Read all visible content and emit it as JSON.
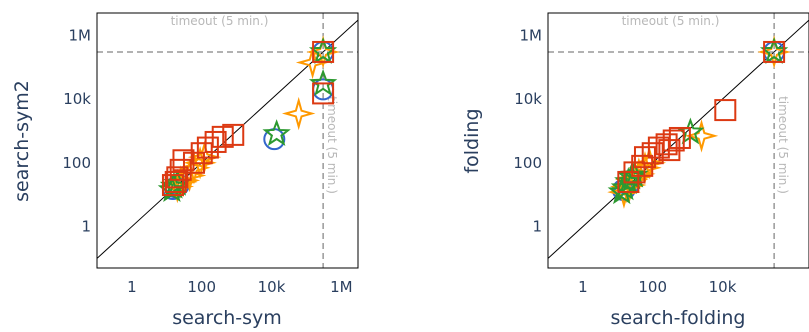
{
  "chart_data": [
    {
      "type": "scatter",
      "xlabel": "search-sym",
      "ylabel": "search-sym2",
      "scale": "log",
      "xlim": [
        0.1,
        3000000
      ],
      "ylim": [
        0.05,
        5000000
      ],
      "xticks": [
        {
          "v": 1,
          "label": "1"
        },
        {
          "v": 100,
          "label": "100"
        },
        {
          "v": 10000,
          "label": "10k"
        },
        {
          "v": 1000000,
          "label": "1M"
        }
      ],
      "yticks": [
        {
          "v": 1,
          "label": "1"
        },
        {
          "v": 100,
          "label": "100"
        },
        {
          "v": 10000,
          "label": "10k"
        },
        {
          "v": 1000000,
          "label": "1M"
        }
      ],
      "timeout": 300000,
      "timeout_label": "timeout (5 min.)",
      "series": [
        {
          "marker": "circle",
          "color": "#3366cc",
          "points": [
            [
              18,
              17
            ],
            [
              22,
              20
            ],
            [
              15,
              15
            ],
            [
              300000,
              300000
            ],
            [
              12000,
              550
            ],
            [
              300000,
              20000
            ]
          ]
        },
        {
          "marker": "star4",
          "color": "#ff9900",
          "points": [
            [
              20,
              18
            ],
            [
              25,
              25
            ],
            [
              30,
              28
            ],
            [
              45,
              40
            ],
            [
              60,
              70
            ],
            [
              90,
              100
            ],
            [
              120,
              150
            ],
            [
              300000,
              300000
            ],
            [
              150000,
              140000
            ],
            [
              60000,
              3500
            ]
          ]
        },
        {
          "marker": "star5",
          "color": "#2c9930",
          "points": [
            [
              16,
              18
            ],
            [
              20,
              22
            ],
            [
              14,
              14
            ],
            [
              300000,
              300000
            ],
            [
              300000,
              30000
            ],
            [
              14000,
              800
            ]
          ]
        },
        {
          "marker": "square",
          "color": "#dc3912",
          "points": [
            [
              15,
              20
            ],
            [
              18,
              25
            ],
            [
              20,
              35
            ],
            [
              25,
              60
            ],
            [
              30,
              120
            ],
            [
              60,
              100
            ],
            [
              100,
              200
            ],
            [
              150,
              300
            ],
            [
              250,
              450
            ],
            [
              400,
              650
            ],
            [
              800,
              750
            ],
            [
              300000,
              300000
            ],
            [
              300000,
              15000
            ]
          ]
        }
      ]
    },
    {
      "type": "scatter",
      "xlabel": "search-folding",
      "ylabel": "folding",
      "scale": "log",
      "xlim": [
        0.1,
        3000000
      ],
      "ylim": [
        0.05,
        5000000
      ],
      "xticks": [
        {
          "v": 1,
          "label": "1"
        },
        {
          "v": 100,
          "label": "100"
        },
        {
          "v": 10000,
          "label": "10k"
        }
      ],
      "yticks": [
        {
          "v": 1,
          "label": "1"
        },
        {
          "v": 100,
          "label": "100"
        },
        {
          "v": 10000,
          "label": "10k"
        },
        {
          "v": 1000000,
          "label": "1M"
        }
      ],
      "timeout": 300000,
      "timeout_label": "timeout (5 min.)",
      "series": [
        {
          "marker": "circle",
          "color": "#3366cc",
          "points": [
            [
              16,
              15
            ],
            [
              20,
              20
            ],
            [
              14,
              14
            ],
            [
              300000,
              300000
            ]
          ]
        },
        {
          "marker": "star4",
          "color": "#ff9900",
          "points": [
            [
              15,
              12
            ],
            [
              18,
              18
            ],
            [
              22,
              20
            ],
            [
              25,
              30
            ],
            [
              30,
              35
            ],
            [
              40,
              45
            ],
            [
              60,
              70
            ],
            [
              80,
              100
            ],
            [
              2500,
              700
            ],
            [
              300000,
              300000
            ]
          ]
        },
        {
          "marker": "star5",
          "color": "#2c9930",
          "points": [
            [
              13,
              12
            ],
            [
              16,
              16
            ],
            [
              20,
              25
            ],
            [
              25,
              35
            ],
            [
              30,
              40
            ],
            [
              1200,
              900
            ],
            [
              300000,
              300000
            ]
          ]
        },
        {
          "marker": "square",
          "color": "#dc3912",
          "points": [
            [
              20,
              25
            ],
            [
              30,
              50
            ],
            [
              50,
              80
            ],
            [
              60,
              150
            ],
            [
              100,
              200
            ],
            [
              150,
              300
            ],
            [
              250,
              380
            ],
            [
              400,
              500
            ],
            [
              600,
              600
            ],
            [
              300,
              250
            ],
            [
              12000,
              4500
            ],
            [
              300000,
              300000
            ]
          ]
        }
      ]
    }
  ]
}
